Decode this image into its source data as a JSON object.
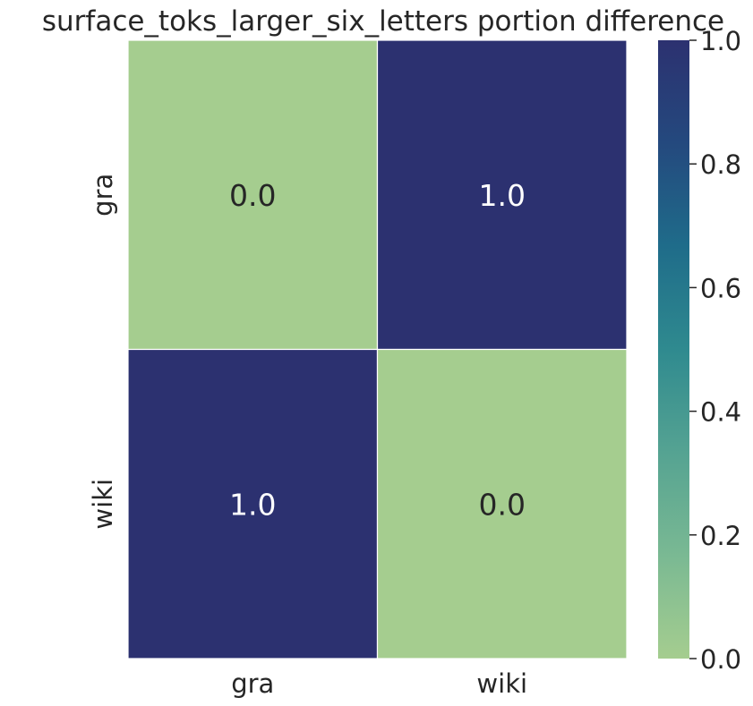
{
  "chart_data": {
    "type": "heatmap",
    "title": "surface_toks_larger_six_letters portion difference",
    "x_categories": [
      "gra",
      "wiki"
    ],
    "y_categories": [
      "gra",
      "wiki"
    ],
    "values": [
      [
        0.0,
        1.0
      ],
      [
        1.0,
        0.0
      ]
    ],
    "cell_labels": [
      [
        "0.0",
        "1.0"
      ],
      [
        "1.0",
        "0.0"
      ]
    ],
    "colorbar": {
      "range": [
        0.0,
        1.0
      ],
      "ticks": [
        0.0,
        0.2,
        0.4,
        0.6,
        0.8,
        1.0
      ],
      "tick_labels": [
        "0.0",
        "0.2",
        "0.4",
        "0.6",
        "0.8",
        "1.0"
      ],
      "colormap": [
        "#a5cd8f",
        "#7ab993",
        "#55a392",
        "#2f8a8f",
        "#1f6c8a",
        "#24497e",
        "#2c3170"
      ]
    },
    "label_colors": {
      "light_cell": "#262626",
      "dark_cell": "#ffffff"
    }
  }
}
